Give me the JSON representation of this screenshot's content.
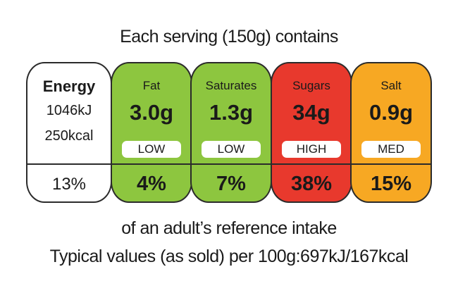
{
  "header": "Each serving (150g) contains",
  "energy": {
    "name": "Energy",
    "kj": "1046kJ",
    "kcal": "250kcal",
    "percent": "13%"
  },
  "nutrients": [
    {
      "name": "Fat",
      "amount": "3.0g",
      "level": "LOW",
      "percent": "4%"
    },
    {
      "name": "Saturates",
      "amount": "1.3g",
      "level": "LOW",
      "percent": "7%"
    },
    {
      "name": "Sugars",
      "amount": "34g",
      "level": "HIGH",
      "percent": "38%"
    },
    {
      "name": "Salt",
      "amount": "0.9g",
      "level": "MED",
      "percent": "15%"
    }
  ],
  "footer": [
    "of an adult’s reference intake",
    "Typical values (as sold) per 100g:697kJ/167kcal"
  ]
}
